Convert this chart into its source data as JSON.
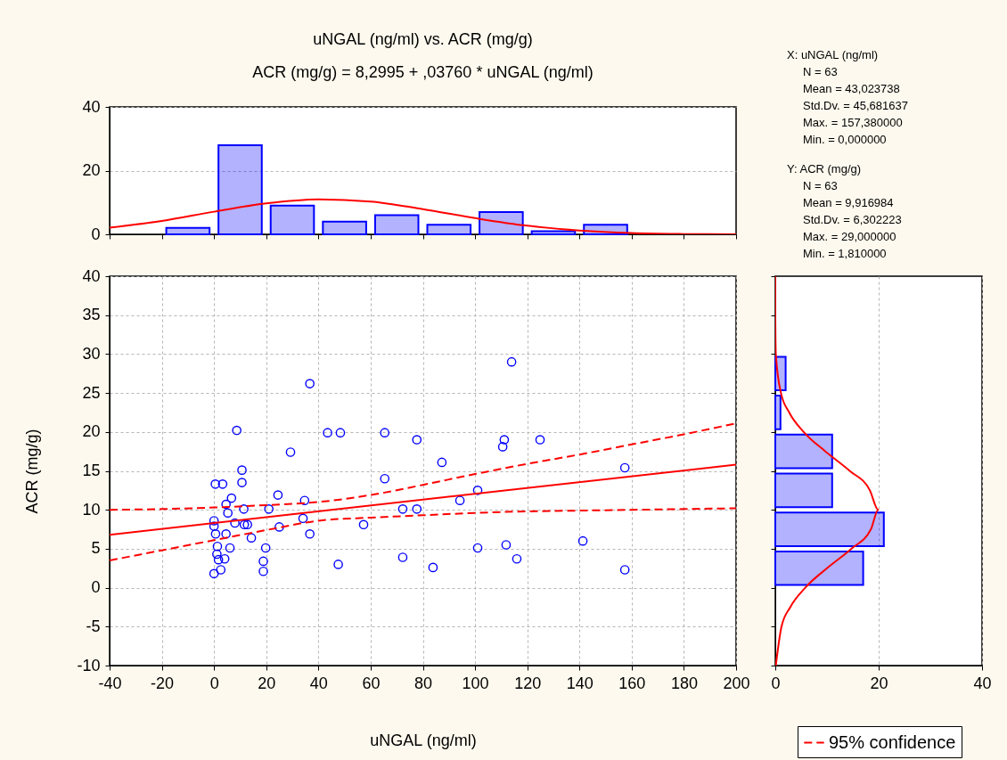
{
  "chart_data": [
    {
      "type": "histogram",
      "title": "uNGAL (ng/ml) vs. ACR (mg/g)",
      "subtitle": "ACR (mg/g) = 8,2995 + ,03760 * uNGAL (ng/ml)",
      "bins": [
        -20,
        0,
        20,
        40,
        60,
        80,
        100,
        120,
        140,
        160
      ],
      "values": [
        2,
        28,
        9,
        4,
        6,
        3,
        7,
        1,
        3
      ],
      "color": "#0000ff",
      "series": [
        {
          "type": "line",
          "color": "#ff0000",
          "x": [
            -40,
            -20,
            0,
            20,
            40,
            60,
            80,
            100,
            120,
            140,
            160,
            180,
            200
          ],
          "values": [
            2.1,
            4.2,
            7.1,
            9.7,
            11.0,
            10.3,
            7.9,
            5.1,
            2.7,
            1.2,
            0.4,
            0.1,
            0
          ]
        }
      ],
      "xlim": [
        -40,
        200
      ],
      "xticks": [
        {
          "value": -40,
          "label": null
        },
        {
          "value": -20,
          "label": null
        },
        {
          "value": 0,
          "label": null
        },
        {
          "value": 20,
          "label": null
        },
        {
          "value": 40,
          "label": null
        },
        {
          "value": 60,
          "label": null
        },
        {
          "value": 80,
          "label": null
        },
        {
          "value": 100,
          "label": null
        },
        {
          "value": 120,
          "label": null
        },
        {
          "value": 140,
          "label": null
        },
        {
          "value": 160,
          "label": null
        },
        {
          "value": 180,
          "label": null
        },
        {
          "value": 200,
          "label": null
        }
      ],
      "ylim": [
        0,
        40
      ],
      "yticks": [
        0,
        20,
        40
      ],
      "tick_labels": "y",
      "grid": "y",
      "annotations": [
        "X:  uNGAL (ng/ml)",
        "N = 63",
        "Mean = 43,023738",
        "Std.Dv. = 45,681637",
        "Max. = 157,380000",
        "Min. = 0,000000",
        "Y:  ACR (mg/g)",
        "N = 63",
        "Mean = 9,916984",
        "Std.Dv. = 6,302223",
        "Max. = 29,000000",
        "Min. = 1,810000"
      ]
    },
    {
      "type": "scatter",
      "xlabel": "uNGAL (ng/ml)",
      "ylabel": "ACR (mg/g)",
      "series": [
        {
          "type": "scatter",
          "color": "#0000ff",
          "marker": "circle",
          "x": [
            36.7,
            8.7,
            43.5,
            48.4,
            65.4,
            77.7,
            29.3,
            10.7,
            0.5,
            3.3,
            10.7,
            65.4,
            24.5,
            34.7,
            6.7,
            4.6,
            5.3,
            11.4,
            21.0,
            72.3,
            77.7,
            0,
            0,
            8.0,
            11.6,
            12.8,
            34.1,
            25.0,
            0.6,
            4.6,
            36.7,
            14.3,
            57.3,
            1.3,
            6.1,
            19.8,
            1.1,
            4.1,
            1.7,
            2.6,
            0,
            18.9,
            18.9,
            47.6,
            72.3,
            114.0,
            111.2,
            110.6,
            124.9,
            87.3,
            157.38,
            101.0,
            94.2,
            101.0,
            111.9,
            116.0,
            141.3,
            83.9,
            157.38
          ],
          "values": [
            26.2,
            20.2,
            19.9,
            19.9,
            19.9,
            19.0,
            17.4,
            15.1,
            13.3,
            13.3,
            13.5,
            14.0,
            11.9,
            11.2,
            11.5,
            10.7,
            9.6,
            10.1,
            10.1,
            10.1,
            10.1,
            8.6,
            7.9,
            8.3,
            8.1,
            8.1,
            8.9,
            7.8,
            6.9,
            6.9,
            6.9,
            6.4,
            8.1,
            5.3,
            5.1,
            5.1,
            4.3,
            3.7,
            3.6,
            2.3,
            1.8,
            3.4,
            2.1,
            3.0,
            3.9,
            29.0,
            19.0,
            18.1,
            19.0,
            16.1,
            15.4,
            12.5,
            11.2,
            5.1,
            5.5,
            3.7,
            6.0,
            2.6,
            2.3
          ]
        },
        {
          "type": "line",
          "color": "#ff0000",
          "line_style": "solid",
          "x": [
            -40,
            200
          ],
          "values": [
            6.8,
            15.8
          ]
        },
        {
          "type": "line",
          "name": "95% confidence",
          "color": "#ff0000",
          "line_style": "dashed",
          "x": [
            -40,
            -20,
            0,
            20,
            40,
            60,
            80,
            100,
            120,
            140,
            160,
            180,
            200
          ],
          "values": [
            10.0,
            10.1,
            10.3,
            10.6,
            11.0,
            11.9,
            13.2,
            14.6,
            15.9,
            17.1,
            18.4,
            19.7,
            21.1
          ]
        },
        {
          "type": "line",
          "color": "#ff0000",
          "line_style": "dashed",
          "x": [
            -40,
            -20,
            0,
            20,
            40,
            60,
            80,
            100,
            120,
            140,
            160,
            180,
            200
          ],
          "values": [
            3.5,
            4.8,
            6.1,
            7.4,
            8.6,
            9.0,
            9.3,
            9.6,
            9.8,
            9.9,
            10.0,
            10.1,
            10.2
          ]
        }
      ],
      "xlim": [
        -40,
        200
      ],
      "xticks": [
        -40,
        -20,
        0,
        20,
        40,
        60,
        80,
        100,
        120,
        140,
        160,
        180,
        200
      ],
      "ylim": [
        -10,
        40
      ],
      "yticks": [
        -10,
        -5,
        0,
        5,
        10,
        15,
        20,
        25,
        30,
        35,
        40
      ],
      "grid": true,
      "legend": "bottom right"
    },
    {
      "type": "histogram",
      "orientation": "horizontal",
      "bins": [
        0,
        5,
        10,
        15,
        20,
        25,
        30
      ],
      "values": [
        17,
        21,
        11,
        11,
        1,
        2
      ],
      "color": "#0000ff",
      "series": [
        {
          "type": "line",
          "color": "#ff0000",
          "x": [
            -10,
            -5,
            -2.5,
            0,
            2.5,
            5,
            7.5,
            10,
            12.5,
            15,
            17.5,
            20,
            22.5,
            25,
            30,
            35,
            40
          ],
          "values": [
            0.1,
            1.2,
            2.9,
            5.8,
            10.0,
            14.7,
            18.5,
            19.9,
            18.3,
            14.4,
            9.7,
            5.5,
            2.7,
            1.1,
            0.1,
            0,
            0
          ]
        }
      ],
      "xlim": [
        0,
        40
      ],
      "xticks": [
        0,
        20,
        40
      ],
      "ylim": [
        -10,
        40
      ],
      "yticks": [
        {
          "value": -10,
          "label": null
        },
        {
          "value": -5,
          "label": null
        },
        {
          "value": 0,
          "label": null
        },
        {
          "value": 5,
          "label": null
        },
        {
          "value": 10,
          "label": null
        },
        {
          "value": 15,
          "label": null
        },
        {
          "value": 20,
          "label": null
        },
        {
          "value": 25,
          "label": null
        },
        {
          "value": 30,
          "label": null
        },
        {
          "value": 35,
          "label": null
        },
        {
          "value": 40,
          "label": null
        }
      ],
      "tick_labels": "x",
      "grid": "x"
    }
  ]
}
